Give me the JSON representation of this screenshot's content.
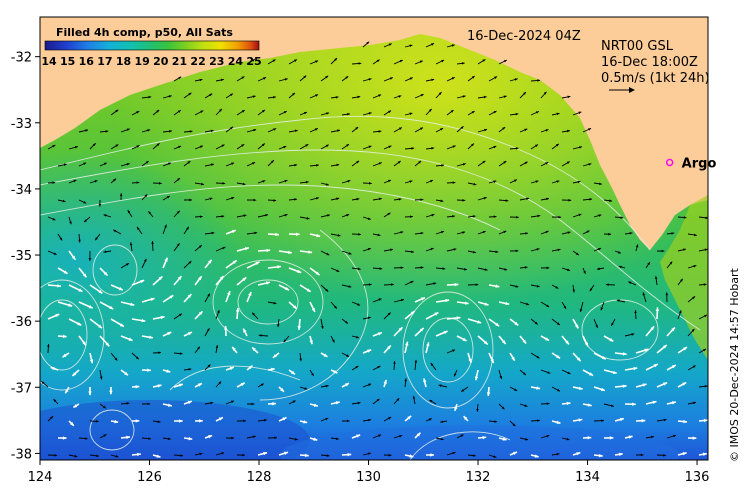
{
  "colorbar": {
    "title": "Filled 4h comp, p50, All Sats",
    "ticks": [
      "14",
      "15",
      "16",
      "17",
      "18",
      "19",
      "20",
      "21",
      "22",
      "23",
      "24",
      "25"
    ],
    "colors": [
      "#1a1a8c",
      "#1f3fd0",
      "#1f7fe6",
      "#13b0d8",
      "#12c0b0",
      "#20c070",
      "#3cc43a",
      "#80d020",
      "#c0e010",
      "#f0e000",
      "#f0a000",
      "#e05010",
      "#a01010"
    ]
  },
  "date_label": "16-Dec-2024 04Z",
  "legend": {
    "line1": "NRT00 GSL",
    "line2": "16-Dec 18:00Z",
    "line3": "0.5m/s (1kt 24h)"
  },
  "argo": {
    "label": "Argo",
    "lon": 135.5,
    "lat": -33.6,
    "color": "#ff00ff"
  },
  "credit": "© IMOS 20-Dec-2024 14:57 Hobart",
  "land_color": "#fccc99",
  "chart_data": {
    "type": "map",
    "x_ticks": [
      "124",
      "126",
      "128",
      "130",
      "132",
      "134",
      "136"
    ],
    "y_ticks": [
      "-32",
      "-33",
      "-34",
      "-35",
      "-36",
      "-37",
      "-38"
    ],
    "xlim": [
      124,
      136.2
    ],
    "ylim": [
      -38.1,
      -31.4
    ],
    "sst_range": [
      14,
      25
    ]
  }
}
